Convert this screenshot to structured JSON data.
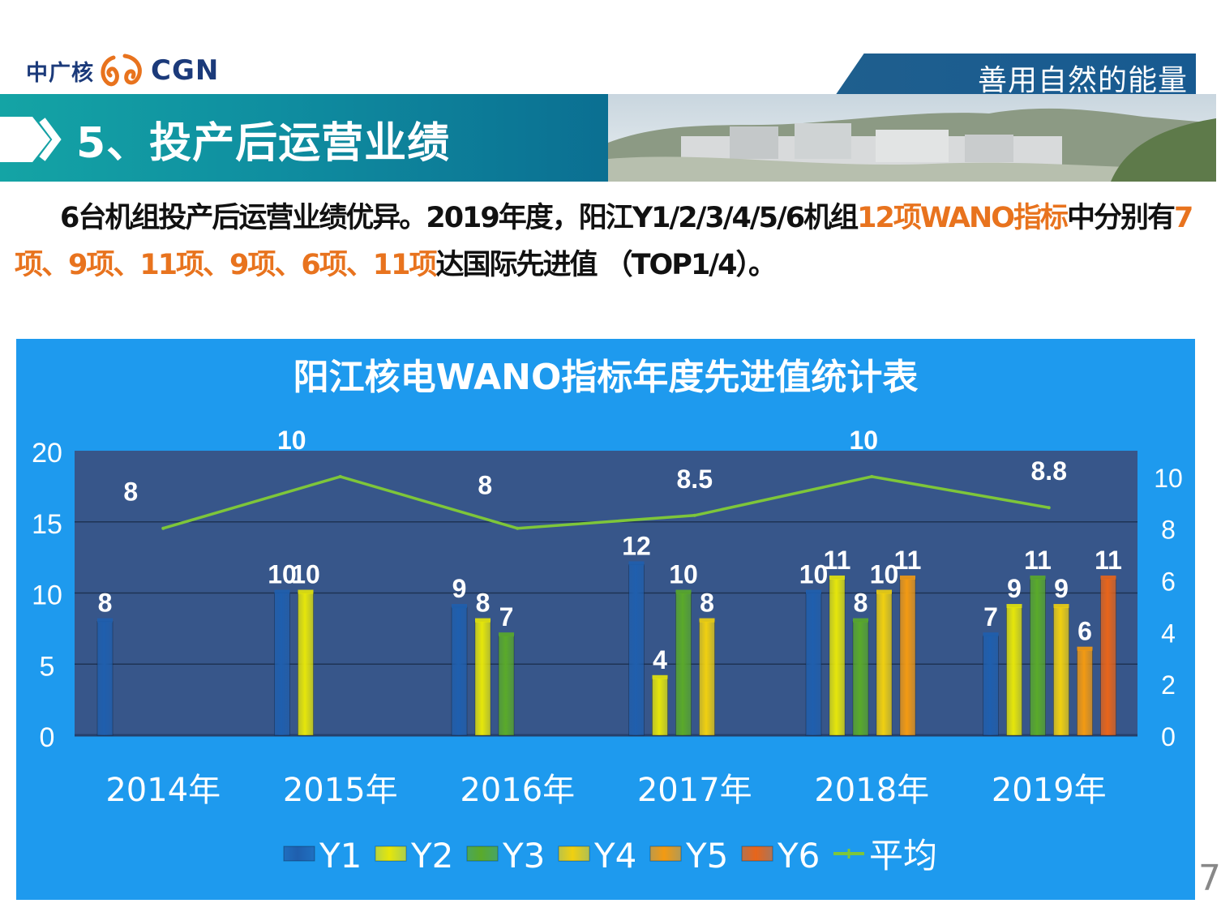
{
  "header": {
    "logo_cn": "中广核",
    "logo_en": "CGN",
    "slogan": "善用自然的能量"
  },
  "section": {
    "title": "5、投产后运营业绩"
  },
  "intro": {
    "p1": "6台机组投产后运营业绩优异。2019年度，阳江Y1/2/3/4/5/6机组",
    "h1": "12项WANO指标",
    "p2": "中分别有",
    "h2": "7项、9项、11项、9项、6项、11项",
    "p3": "达国际先进值 （TOP1/4）。"
  },
  "page_number": "7",
  "colors": {
    "panel": "#1e9aee",
    "plot": "#37568a",
    "Y1": "#1f5fae",
    "Y2": "#e6e60a",
    "Y3": "#5aaa2a",
    "Y4": "#f0d010",
    "Y5": "#f39a12",
    "Y6": "#e8651a",
    "avg": "#7ec63a"
  },
  "chart_data": {
    "type": "bar",
    "title": "阳江核电WANO指标年度先进值统计表",
    "categories": [
      "2014年",
      "2015年",
      "2016年",
      "2017年",
      "2018年",
      "2019年"
    ],
    "series": [
      {
        "name": "Y1",
        "values": [
          8,
          10,
          9,
          12,
          10,
          7
        ]
      },
      {
        "name": "Y2",
        "values": [
          null,
          10,
          8,
          4,
          11,
          9
        ]
      },
      {
        "name": "Y3",
        "values": [
          null,
          null,
          7,
          10,
          8,
          11
        ]
      },
      {
        "name": "Y4",
        "values": [
          null,
          null,
          null,
          8,
          10,
          9
        ]
      },
      {
        "name": "Y5",
        "values": [
          null,
          null,
          null,
          null,
          11,
          6
        ]
      },
      {
        "name": "Y6",
        "values": [
          null,
          null,
          null,
          null,
          null,
          11
        ]
      }
    ],
    "line_series": {
      "name": "平均",
      "values": [
        8,
        10,
        8,
        8.5,
        10,
        8.8
      ],
      "axis": "right"
    },
    "ylim": [
      0,
      20
    ],
    "yticks": [
      0,
      5,
      10,
      15,
      20
    ],
    "y2lim": [
      0,
      11
    ],
    "y2ticks": [
      0,
      2,
      4,
      6,
      8,
      10
    ],
    "legend_position": "bottom",
    "grid": true
  }
}
